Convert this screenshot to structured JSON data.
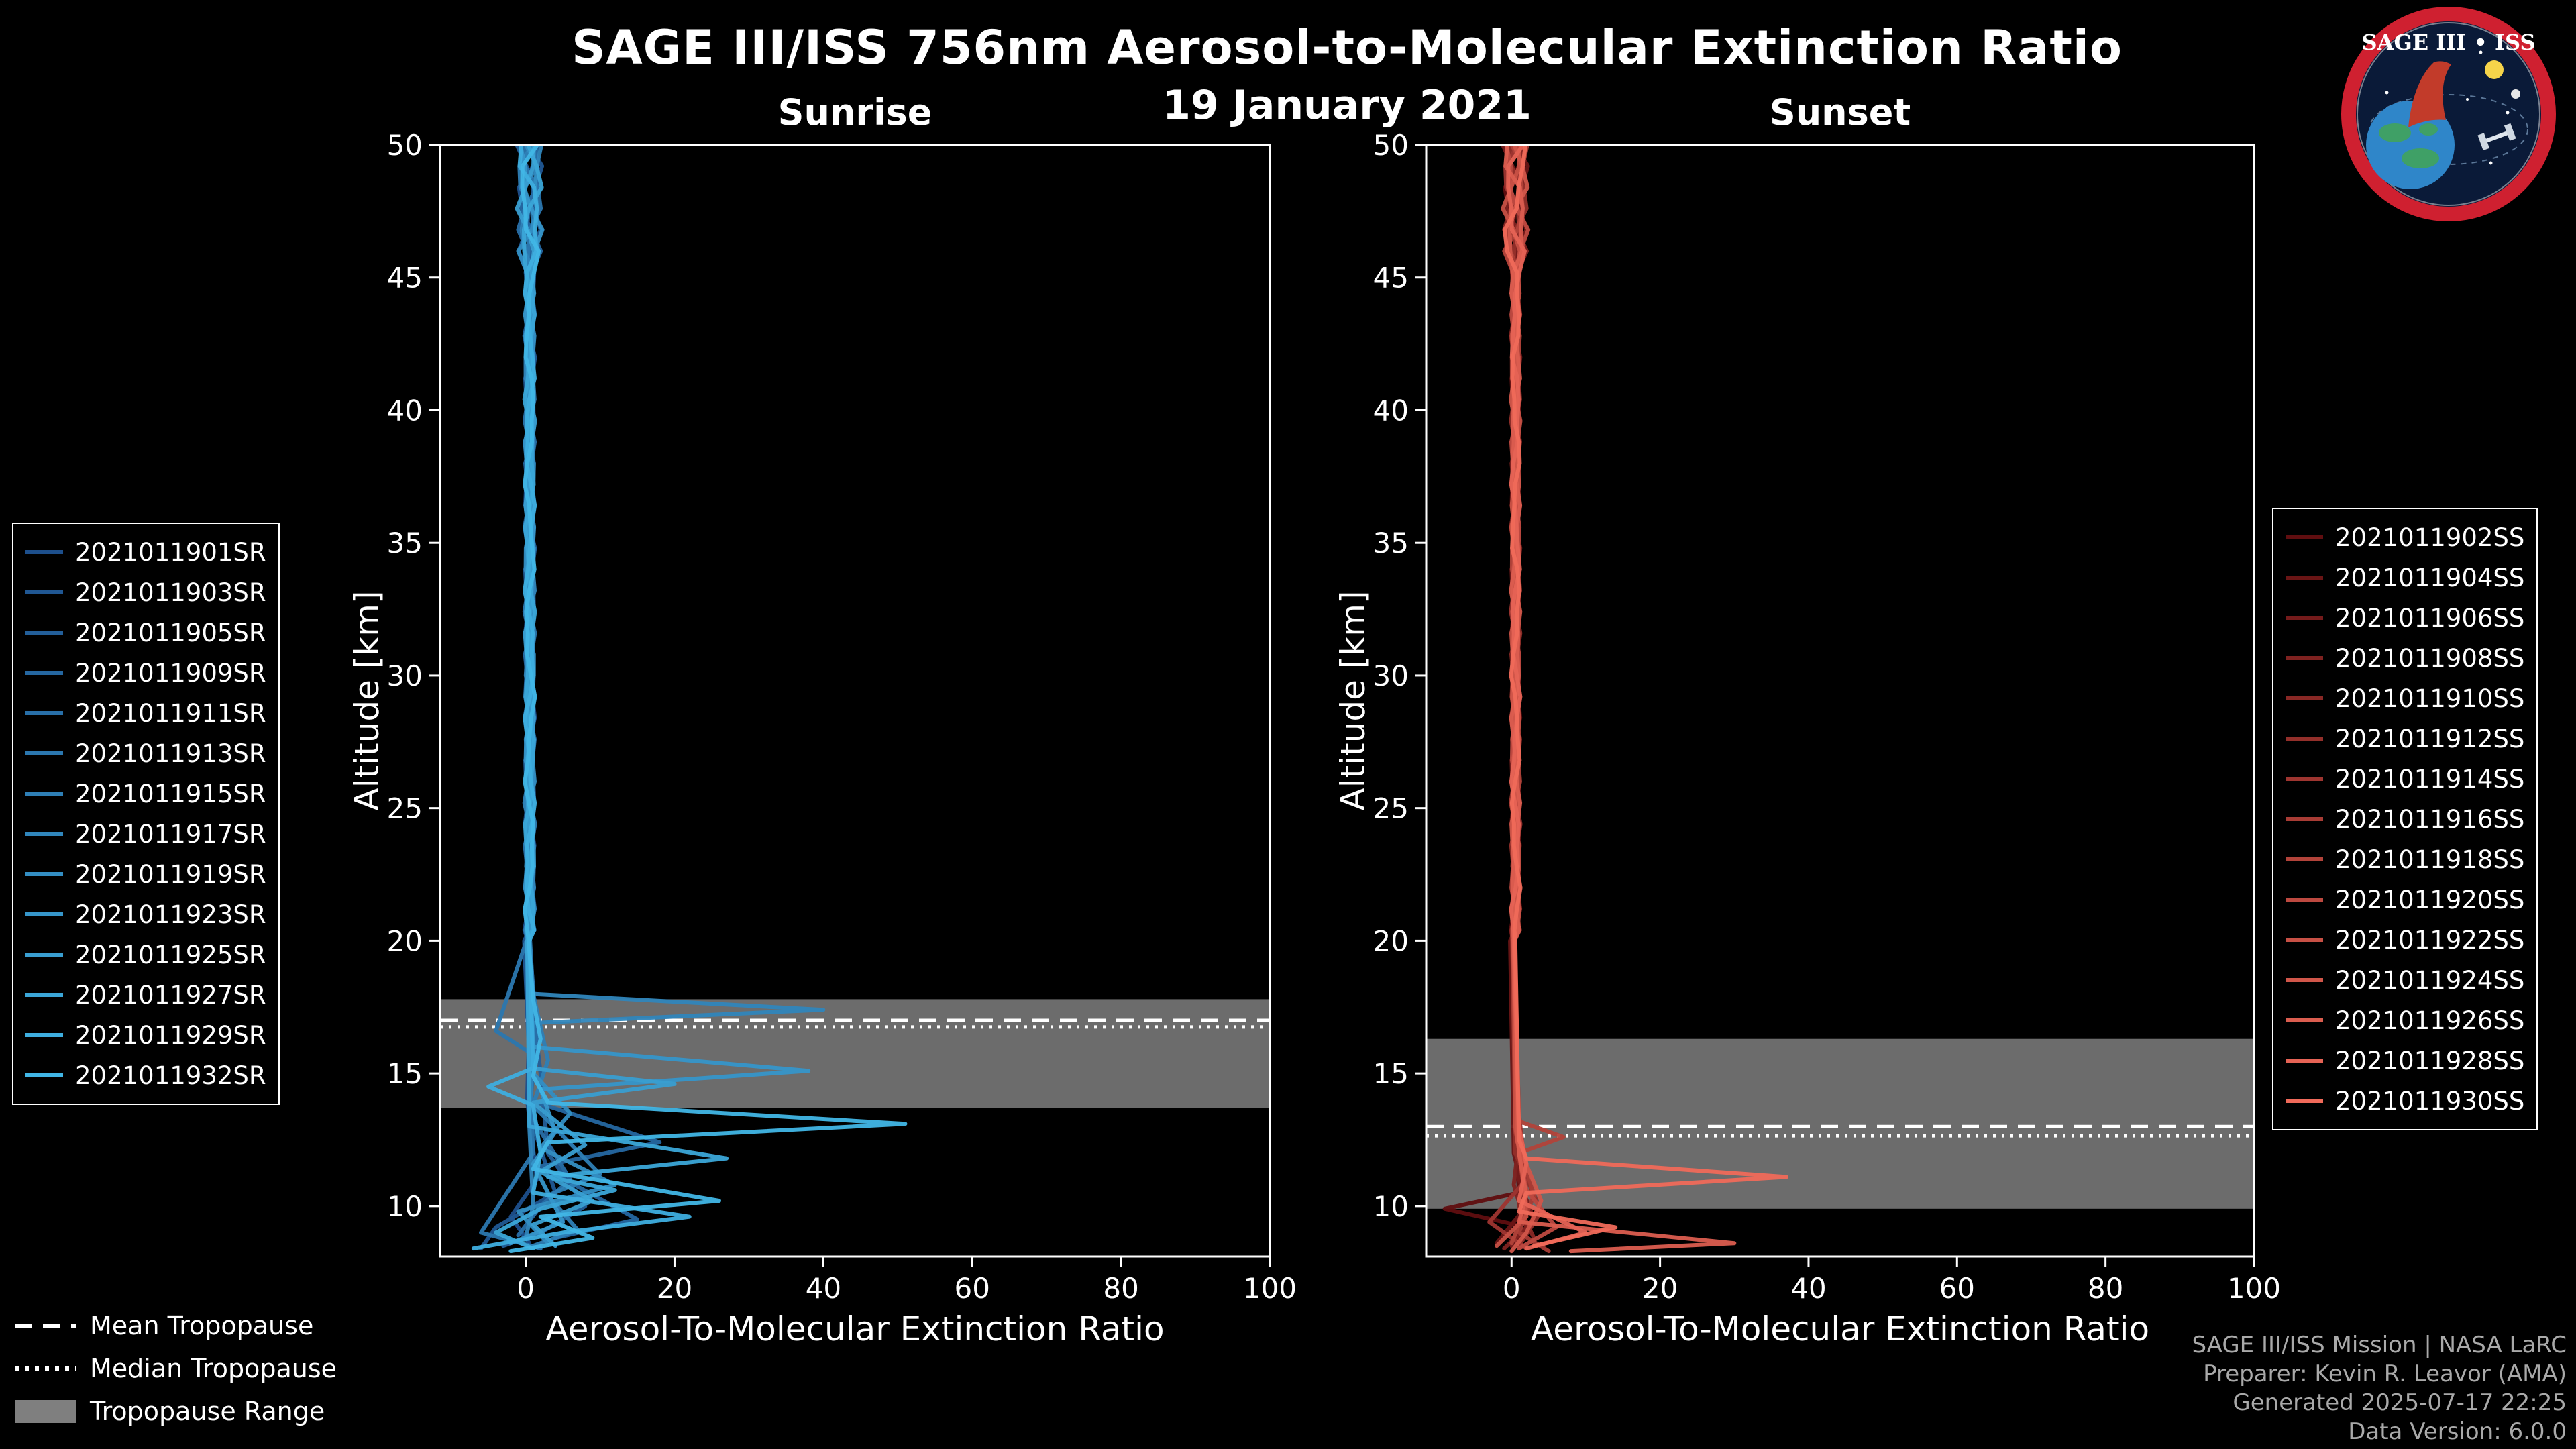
{
  "header": {
    "title": "SAGE III/ISS 756nm Aerosol-to-Molecular Extinction Ratio",
    "subtitle": "19 January 2021"
  },
  "logo": {
    "title": "SAGE III • ISS"
  },
  "tropopause_legend": {
    "mean_label": "Mean Tropopause",
    "median_label": "Median Tropopause",
    "range_label": "Tropopause Range"
  },
  "attribution": {
    "line1": "SAGE III/ISS Mission | NASA LaRC",
    "line2": "Preparer: Kevin R. Leavor (AMA)",
    "line3": "Generated 2025-07-17 22:25",
    "line4": "Data Version: 6.0.0"
  },
  "chart_data": [
    {
      "type": "line",
      "title": "Sunrise",
      "xlabel": "Aerosol-To-Molecular Extinction Ratio",
      "ylabel": "Altitude [km]",
      "xlim": [
        -11.5,
        100
      ],
      "ylim": [
        8.1,
        50
      ],
      "xticks": [
        0,
        20,
        40,
        60,
        80,
        100
      ],
      "yticks": [
        10,
        15,
        20,
        25,
        30,
        35,
        40,
        45,
        50
      ],
      "grid": false,
      "legend_position": "outside-left",
      "profile_top_km": 50,
      "bundle_wiggle": 0.5,
      "tropopause": {
        "mean_km": 17.0,
        "median_km": 16.75,
        "range_km": [
          13.7,
          17.8
        ],
        "band_color": "#7f7f7f"
      },
      "series": [
        {
          "name": "2021011901SR",
          "color": "#1d4f8c",
          "anchors": [
            [
              20,
              0.3
            ],
            [
              17,
              0.5
            ],
            [
              14,
              0.2
            ],
            [
              11,
              1.5
            ],
            [
              9.6,
              -2
            ],
            [
              8.6,
              0.5
            ]
          ]
        },
        {
          "name": "2021011903SR",
          "color": "#205793",
          "anchors": [
            [
              20,
              -0.2
            ],
            [
              16,
              0.4
            ],
            [
              13,
              1
            ],
            [
              10.5,
              4
            ],
            [
              9.2,
              -4
            ],
            [
              8.4,
              -6
            ]
          ]
        },
        {
          "name": "2021011905SR",
          "color": "#235f9a",
          "anchors": [
            [
              20,
              0.4
            ],
            [
              17.5,
              1
            ],
            [
              15,
              2
            ],
            [
              12,
              3
            ],
            [
              10,
              8
            ],
            [
              9,
              2
            ],
            [
              8.5,
              -3
            ]
          ]
        },
        {
          "name": "2021011909SR",
          "color": "#2567a1",
          "anchors": [
            [
              20,
              0.2
            ],
            [
              14,
              0.5
            ],
            [
              12.4,
              18
            ],
            [
              11.5,
              2
            ],
            [
              9.5,
              15
            ],
            [
              8.8,
              4
            ]
          ]
        },
        {
          "name": "2021011911SR",
          "color": "#286fa8",
          "anchors": [
            [
              20,
              0.5
            ],
            [
              16.5,
              1.5
            ],
            [
              13.5,
              0.5
            ],
            [
              11,
              6
            ],
            [
              10,
              2
            ],
            [
              8.9,
              -1
            ]
          ]
        },
        {
          "name": "2021011913SR",
          "color": "#2b77af",
          "anchors": [
            [
              20,
              0.1
            ],
            [
              16.6,
              -4
            ],
            [
              15.8,
              0.5
            ],
            [
              12,
              1
            ],
            [
              9,
              -6
            ],
            [
              8.4,
              2
            ]
          ]
        },
        {
          "name": "2021011915SR",
          "color": "#2e7fb6",
          "anchors": [
            [
              20,
              0.6
            ],
            [
              18,
              1
            ],
            [
              15.5,
              3
            ],
            [
              13.8,
              1
            ],
            [
              11.2,
              10
            ],
            [
              10.4,
              3
            ],
            [
              9.1,
              7
            ],
            [
              8.5,
              1
            ]
          ]
        },
        {
          "name": "2021011917SR",
          "color": "#3086bc",
          "anchors": [
            [
              20,
              0.3
            ],
            [
              18,
              0.8
            ],
            [
              17.4,
              40
            ],
            [
              16.9,
              1
            ],
            [
              13,
              0.5
            ],
            [
              10,
              1
            ],
            [
              8.8,
              0
            ]
          ]
        },
        {
          "name": "2021011919SR",
          "color": "#338ec3",
          "anchors": [
            [
              20,
              0.2
            ],
            [
              15,
              1
            ],
            [
              13.5,
              6
            ],
            [
              12.2,
              2
            ],
            [
              10.8,
              12
            ],
            [
              9.8,
              -1
            ],
            [
              8.6,
              3
            ]
          ]
        },
        {
          "name": "2021011923SR",
          "color": "#3696ca",
          "anchors": [
            [
              20,
              0.4
            ],
            [
              16,
              1
            ],
            [
              15.1,
              38
            ],
            [
              14.4,
              2
            ],
            [
              12.8,
              4
            ],
            [
              11.6,
              1
            ],
            [
              9.4,
              5
            ],
            [
              8.6,
              -2
            ]
          ]
        },
        {
          "name": "2021011925SR",
          "color": "#399ed1",
          "anchors": [
            [
              20,
              0.3
            ],
            [
              15.2,
              0.5
            ],
            [
              14.6,
              20
            ],
            [
              13.9,
              1
            ],
            [
              12.3,
              8
            ],
            [
              11.3,
              2
            ],
            [
              10.2,
              9
            ],
            [
              9.3,
              1
            ],
            [
              8.5,
              4
            ]
          ]
        },
        {
          "name": "2021011927SR",
          "color": "#3ba6d8",
          "anchors": [
            [
              20,
              0.2
            ],
            [
              13,
              0.5
            ],
            [
              11.8,
              27
            ],
            [
              11.1,
              3
            ],
            [
              10.6,
              12
            ],
            [
              9.9,
              2
            ],
            [
              9,
              -4
            ],
            [
              8.4,
              1
            ]
          ]
        },
        {
          "name": "2021011929SR",
          "color": "#3eaedf",
          "anchors": [
            [
              20,
              0.5
            ],
            [
              15.2,
              1
            ],
            [
              14.5,
              -5
            ],
            [
              13.8,
              1
            ],
            [
              12,
              2
            ],
            [
              10.5,
              1
            ],
            [
              9.6,
              22
            ],
            [
              9,
              5
            ],
            [
              8.4,
              -7
            ]
          ]
        },
        {
          "name": "2021011932SR",
          "color": "#41b6e6",
          "anchors": [
            [
              20,
              0.4
            ],
            [
              17.8,
              1
            ],
            [
              16.3,
              2
            ],
            [
              14.9,
              1
            ],
            [
              13.9,
              3
            ],
            [
              13.1,
              51
            ],
            [
              12.4,
              3
            ],
            [
              11.4,
              1
            ],
            [
              10.2,
              26
            ],
            [
              9.6,
              2
            ],
            [
              8.8,
              9
            ],
            [
              8.3,
              -2
            ]
          ]
        }
      ]
    },
    {
      "type": "line",
      "title": "Sunset",
      "xlabel": "Aerosol-To-Molecular Extinction Ratio",
      "ylabel": "Altitude [km]",
      "xlim": [
        -11.5,
        100
      ],
      "ylim": [
        8.1,
        50
      ],
      "xticks": [
        0,
        20,
        40,
        60,
        80,
        100
      ],
      "yticks": [
        10,
        15,
        20,
        25,
        30,
        35,
        40,
        45,
        50
      ],
      "grid": false,
      "legend_position": "outside-right",
      "profile_top_km": 50,
      "bundle_wiggle": 0.45,
      "tropopause": {
        "mean_km": 13.0,
        "median_km": 12.65,
        "range_km": [
          9.9,
          16.3
        ],
        "band_color": "#7f7f7f"
      },
      "series": [
        {
          "name": "2021011902SS",
          "color": "#600e10",
          "anchors": [
            [
              20,
              0.2
            ],
            [
              13,
              0.5
            ],
            [
              10.5,
              1
            ],
            [
              9.9,
              -9
            ],
            [
              9.3,
              0.5
            ],
            [
              8.4,
              1
            ]
          ]
        },
        {
          "name": "2021011904SS",
          "color": "#6a1515",
          "anchors": [
            [
              20,
              -0.2
            ],
            [
              12,
              0.3
            ],
            [
              10,
              2
            ],
            [
              8.6,
              -2
            ]
          ]
        },
        {
          "name": "2021011906SS",
          "color": "#751b1b",
          "anchors": [
            [
              20,
              0.3
            ],
            [
              14,
              0.6
            ],
            [
              11,
              1
            ],
            [
              9.5,
              3
            ],
            [
              8.5,
              0
            ]
          ]
        },
        {
          "name": "2021011908SS",
          "color": "#7f2220",
          "anchors": [
            [
              20,
              0.1
            ],
            [
              12.5,
              1
            ],
            [
              10.8,
              0.3
            ],
            [
              9.2,
              2
            ],
            [
              8.4,
              -1
            ]
          ]
        },
        {
          "name": "2021011910SS",
          "color": "#892825",
          "anchors": [
            [
              20,
              0.4
            ],
            [
              13,
              0.8
            ],
            [
              11.5,
              2
            ],
            [
              10,
              1
            ],
            [
              8.8,
              3
            ]
          ]
        },
        {
          "name": "2021011912SS",
          "color": "#932f2a",
          "anchors": [
            [
              20,
              0.2
            ],
            [
              12,
              0.5
            ],
            [
              9.8,
              4
            ],
            [
              8.5,
              1
            ]
          ]
        },
        {
          "name": "2021011914SS",
          "color": "#9e3530",
          "anchors": [
            [
              20,
              0.3
            ],
            [
              13.5,
              1
            ],
            [
              11,
              2
            ],
            [
              9.4,
              -3
            ],
            [
              8.4,
              2
            ]
          ]
        },
        {
          "name": "2021011916SS",
          "color": "#a83c35",
          "anchors": [
            [
              20,
              0.1
            ],
            [
              12.8,
              0.5
            ],
            [
              10.4,
              3
            ],
            [
              9,
              1
            ],
            [
              8.3,
              5
            ]
          ]
        },
        {
          "name": "2021011918SS",
          "color": "#b2433a",
          "anchors": [
            [
              20,
              0.4
            ],
            [
              13.2,
              1
            ],
            [
              12.6,
              7
            ],
            [
              12,
              1
            ],
            [
              10,
              2
            ],
            [
              8.6,
              0
            ]
          ]
        },
        {
          "name": "2021011920SS",
          "color": "#bd4940",
          "anchors": [
            [
              20,
              0.2
            ],
            [
              12,
              1
            ],
            [
              10.6,
              2
            ],
            [
              9.2,
              6
            ],
            [
              8.4,
              1
            ]
          ]
        },
        {
          "name": "2021011922SS",
          "color": "#c75045",
          "anchors": [
            [
              20,
              0.3
            ],
            [
              13,
              0.5
            ],
            [
              11.2,
              1.5
            ],
            [
              9.6,
              2
            ],
            [
              8.5,
              -2
            ]
          ]
        },
        {
          "name": "2021011924SS",
          "color": "#d1564a",
          "anchors": [
            [
              20,
              0.2
            ],
            [
              12.4,
              0.8
            ],
            [
              10.2,
              4
            ],
            [
              9,
              2
            ],
            [
              8.3,
              0
            ]
          ]
        },
        {
          "name": "2021011926SS",
          "color": "#db5d4f",
          "anchors": [
            [
              20,
              0.4
            ],
            [
              12,
              1
            ],
            [
              10.4,
              2
            ],
            [
              9.4,
              1
            ],
            [
              8.6,
              30
            ],
            [
              8.3,
              8
            ]
          ]
        },
        {
          "name": "2021011928SS",
          "color": "#e66355",
          "anchors": [
            [
              20,
              0.3
            ],
            [
              13,
              1
            ],
            [
              11.6,
              2
            ],
            [
              10.2,
              1
            ],
            [
              9,
              10
            ],
            [
              8.4,
              2
            ]
          ]
        },
        {
          "name": "2021011930SS",
          "color": "#f06a5a",
          "anchors": [
            [
              20,
              0.5
            ],
            [
              12.5,
              1
            ],
            [
              11.8,
              2
            ],
            [
              11.1,
              37
            ],
            [
              10.5,
              2
            ],
            [
              9.8,
              1
            ],
            [
              9.2,
              14
            ],
            [
              8.5,
              3
            ]
          ]
        }
      ]
    }
  ]
}
